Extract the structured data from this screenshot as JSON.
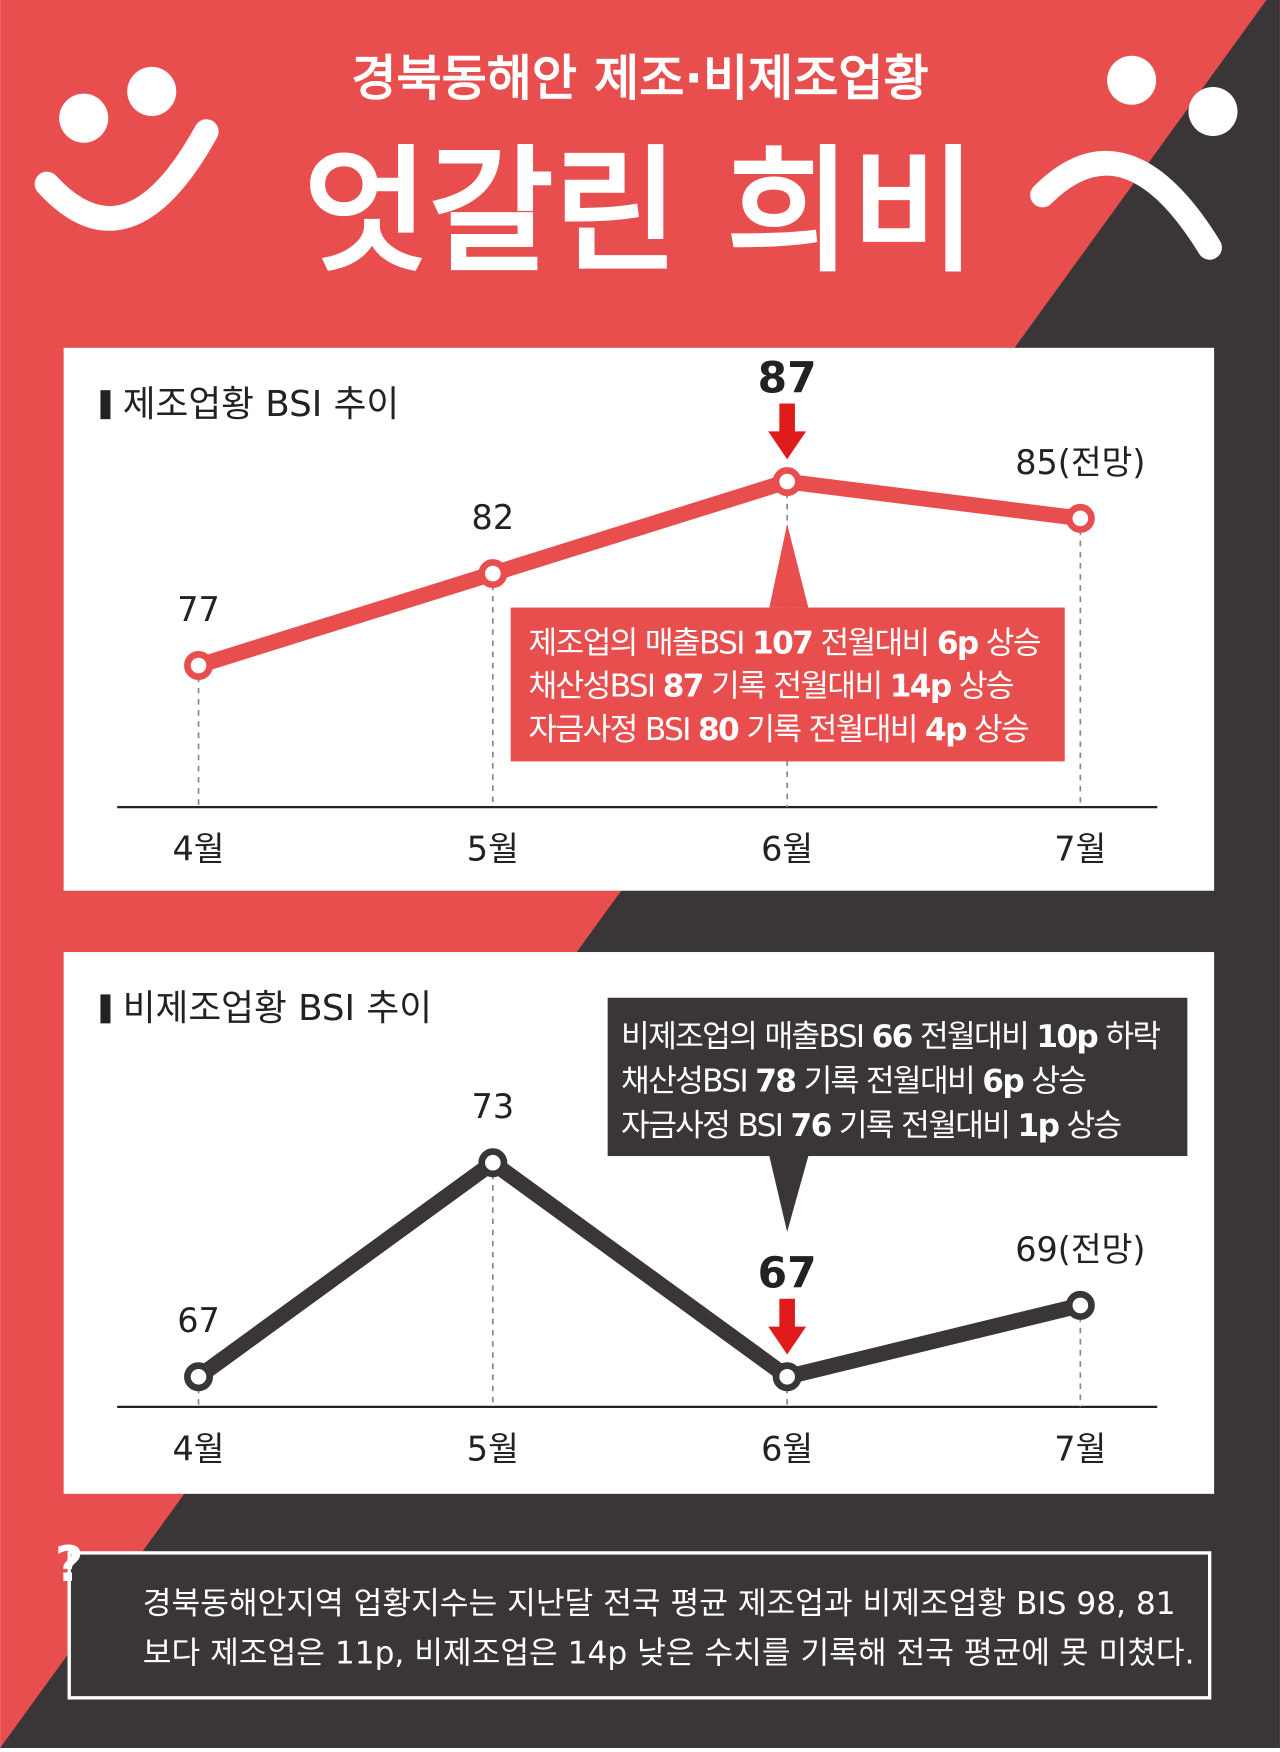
{
  "header": {
    "subtitle": "경북동해안 제조·비제조업황",
    "title": "엇갈린 희비"
  },
  "chart_data": [
    {
      "type": "line",
      "title": "제조업황 BSI 추이",
      "categories": [
        "4월",
        "5월",
        "6월",
        "7월"
      ],
      "values": [
        77,
        82,
        87,
        85
      ],
      "value_labels": [
        "77",
        "82",
        "87",
        "85(전망)"
      ],
      "color": "#e94e4f",
      "highlight_index": 2,
      "annotation_color": "#e94e4f",
      "annotation": [
        [
          "제조업의 매출BSI ",
          "107",
          " 전월대비 ",
          "6p",
          " 상승"
        ],
        [
          "채산성BSI ",
          "87",
          " 기록 전월대비 ",
          "14p",
          " 상승"
        ],
        [
          "자금사정 BSI ",
          "80",
          " 기록 전월대비 ",
          "4p",
          " 상승"
        ]
      ]
    },
    {
      "type": "line",
      "title": "비제조업황 BSI 추이",
      "categories": [
        "4월",
        "5월",
        "6월",
        "7월"
      ],
      "values": [
        67,
        73,
        67,
        69
      ],
      "value_labels": [
        "67",
        "73",
        "67",
        "69(전망)"
      ],
      "color": "#3a3536",
      "highlight_index": 2,
      "annotation_color": "#3a3536",
      "annotation": [
        [
          "비제조업의 매출BSI ",
          "66",
          " 전월대비 ",
          "10p",
          " 하락"
        ],
        [
          "채산성BSI ",
          "78",
          " 기록 전월대비 ",
          "6p",
          " 상승"
        ],
        [
          "자금사정 BSI ",
          "76",
          " 기록 전월대비 ",
          "1p",
          " 상승"
        ]
      ]
    }
  ],
  "footer": {
    "mark": "?",
    "lines": [
      "경북동해안지역 업황지수는 지난달 전국 평균 제조업과 비제조업황 BIS 98, 81",
      "보다 제조업은 11p, 비제조업은 14p 낮은 수치를 기록해 전국 평균에 못 미쳤다."
    ]
  }
}
